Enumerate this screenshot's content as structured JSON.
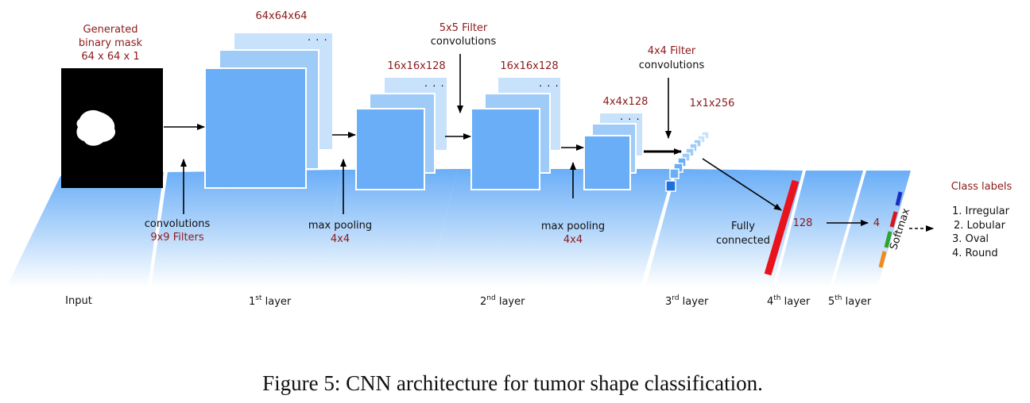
{
  "input": {
    "title_line1": "Generated",
    "title_line2": "binary mask",
    "title_line3": "64 x 64 x 1"
  },
  "layer1": {
    "dims": "64x64x64",
    "op_line1": "convolutions",
    "op_line2": "9x9 Filters",
    "pool_line1": "max pooling",
    "pool_line2": "4x4",
    "pool_dims": "16x16x128"
  },
  "layer2": {
    "filter_line1": "5x5 Filter",
    "filter_line2": "convolutions",
    "dims": "16x16x128",
    "pool_line1": "max pooling",
    "pool_line2": "4x4"
  },
  "layer3": {
    "filter_line1": "4x4 Filter",
    "filter_line2": "convolutions",
    "dims": "4x4x128",
    "out_dims": "1x1x256"
  },
  "layer4": {
    "label_line1": "Fully",
    "label_line2": "connected",
    "units": "128"
  },
  "layer5": {
    "units": "4",
    "softmax": "Softmax"
  },
  "class_labels": {
    "title": "Class labels",
    "items": [
      "1. Irregular",
      "2. Lobular",
      "3. Oval",
      "4. Round"
    ]
  },
  "layer_names": {
    "input": "Input",
    "l1_num": "1",
    "l1_sup": "st",
    "l1_word": " layer",
    "l2_num": "2",
    "l2_sup": "nd",
    "l2_word": "  layer",
    "l3_num": "3",
    "l3_sup": "rd",
    "l3_word": "  layer",
    "l4_num": "4",
    "l4_sup": "th",
    "l4_word": " layer",
    "l5_num": "5",
    "l5_sup": "th",
    "l5_word": " layer"
  },
  "dots": ". . .",
  "caption": "Figure 5: CNN architecture for tumor shape classification.",
  "colors": {
    "map_front": "#6aaef7",
    "map_back1": "#9fcbf9",
    "map_back2": "#c9e2fc",
    "annotation_red": "#8b1a1a",
    "fc_bar": "#e8131b",
    "softmax_segments": [
      "#1a2fc0",
      "#d9141b",
      "#2da52d",
      "#f08a1a"
    ]
  }
}
